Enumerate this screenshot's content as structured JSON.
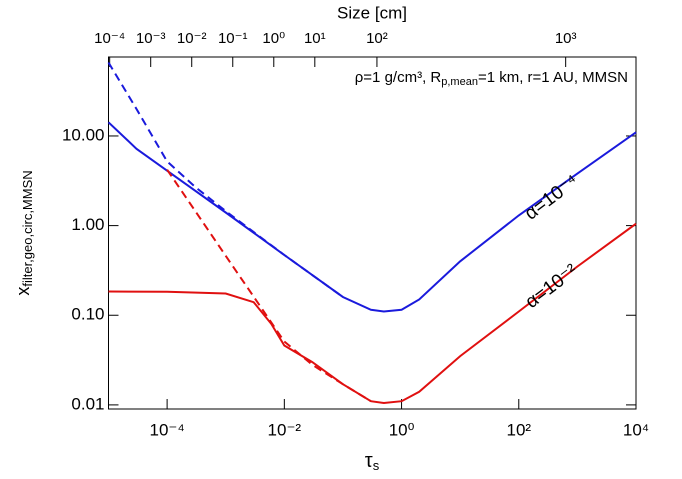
{
  "chart_data": {
    "type": "line",
    "xlog": true,
    "ylog": true,
    "xlabel": "τ",
    "xlabel_sub": "s",
    "ylabel": "x",
    "ylabel_sub": "filter,geo,circ,MMSN",
    "x2label": "Size [cm]",
    "annotation": [
      "ρ=1 g/cm³, R",
      "p,mean",
      "=1 km, r=1 AU, MMSN"
    ],
    "curve_labels": [
      {
        "text": "α=10⁻⁴",
        "color": "#1a1adc"
      },
      {
        "text": "α=10⁻²",
        "color": "#e01010"
      }
    ],
    "xlim": [
      1e-05,
      10000
    ],
    "ylim": [
      0.009,
      76
    ],
    "xticks": [
      {
        "value": 0.0001,
        "label": "10⁻⁴"
      },
      {
        "value": 0.01,
        "label": "10⁻²"
      },
      {
        "value": 1,
        "label": "10⁰"
      },
      {
        "value": 100,
        "label": "10²"
      },
      {
        "value": 10000,
        "label": "10⁴"
      }
    ],
    "yticks": [
      {
        "value": 0.01,
        "label": "0.01"
      },
      {
        "value": 0.1,
        "label": "0.10"
      },
      {
        "value": 1,
        "label": "1.00"
      },
      {
        "value": 10,
        "label": "10.00"
      }
    ],
    "x2ticks": [
      {
        "value": 0.0001,
        "label": "10⁻⁴"
      },
      {
        "value": 0.001,
        "label": "10⁻³"
      },
      {
        "value": 0.01,
        "label": "10⁻²"
      },
      {
        "value": 0.1,
        "label": "10⁻¹"
      },
      {
        "value": 1,
        "label": "10⁰"
      },
      {
        "value": 10,
        "label": "10¹"
      },
      {
        "value": 100,
        "label": "10²"
      },
      {
        "value": 1000,
        "label": "10³"
      }
    ],
    "series": [
      {
        "color": "#1a1adc",
        "dash": false,
        "x": [
          1e-05,
          3e-05,
          0.0001,
          0.001,
          0.01,
          0.1,
          0.3,
          0.5,
          1,
          2,
          10,
          100,
          1000,
          10000
        ],
        "values": [
          14.2,
          7.2,
          4.1,
          1.4,
          0.47,
          0.16,
          0.115,
          0.11,
          0.115,
          0.15,
          0.4,
          1.3,
          3.8,
          11
        ]
      },
      {
        "color": "#1a1adc",
        "dash": true,
        "x": [
          1e-05,
          3e-05,
          0.0001,
          0.0003,
          0.001,
          0.01,
          0.1
        ],
        "values": [
          66,
          20,
          5.2,
          2.7,
          1.45,
          0.47,
          0.16
        ]
      },
      {
        "color": "#e01010",
        "dash": false,
        "x": [
          1e-05,
          0.0001,
          0.001,
          0.003,
          0.006,
          0.01,
          0.03,
          0.1,
          0.3,
          0.5,
          1,
          2,
          10,
          100,
          1000,
          10000
        ],
        "values": [
          0.184,
          0.183,
          0.175,
          0.14,
          0.08,
          0.046,
          0.03,
          0.017,
          0.011,
          0.0105,
          0.011,
          0.014,
          0.035,
          0.11,
          0.35,
          1.05
        ]
      },
      {
        "color": "#e01010",
        "dash": true,
        "x": [
          0.0001,
          0.001,
          0.01,
          0.03,
          0.1,
          0.3
        ],
        "values": [
          4.2,
          0.46,
          0.051,
          0.028,
          0.017,
          0.011
        ]
      }
    ]
  }
}
